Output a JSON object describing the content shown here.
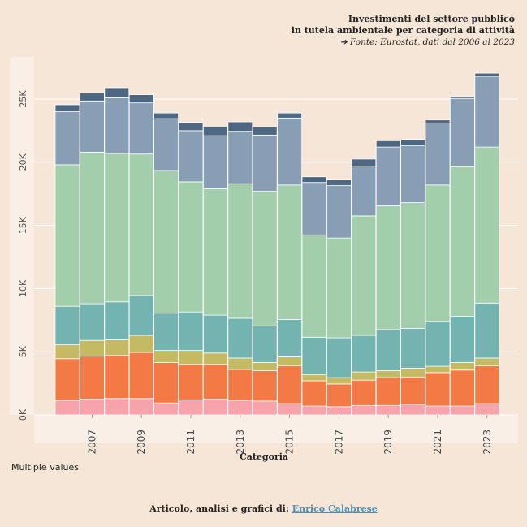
{
  "header": {
    "title_line1": "Investimenti del settore pubblico",
    "title_line2": "in tutela ambientale per categoria di attività",
    "source": "➔ Fonte:  Eurostat, dati dal 2006 al 2023"
  },
  "footer": {
    "note": "Multiple values",
    "credits_prefix": "Articolo, analisi e grafici di:",
    "author": "Enrico Calabrese"
  },
  "chart_data": {
    "type": "bar",
    "stacked": true,
    "xlabel": "Categoria",
    "ylabel": "",
    "ylim": [
      0,
      28000
    ],
    "y_ticks": [
      0,
      5000,
      10000,
      15000,
      20000,
      25000
    ],
    "y_tick_labels": [
      "0K",
      "5K",
      "10K",
      "15K",
      "20K",
      "25K"
    ],
    "x_tick_labels": [
      "2007",
      "2009",
      "2011",
      "2013",
      "2015",
      "2017",
      "2019",
      "2021",
      "2023"
    ],
    "grid": true,
    "categories": [
      2006,
      2007,
      2008,
      2009,
      2010,
      2011,
      2012,
      2013,
      2014,
      2015,
      2016,
      2017,
      2018,
      2019,
      2020,
      2021,
      2022,
      2023
    ],
    "series": [
      {
        "color": "#f7a3ab",
        "values": [
          1150,
          1250,
          1300,
          1300,
          950,
          1200,
          1250,
          1150,
          1100,
          900,
          700,
          650,
          750,
          750,
          850,
          700,
          700,
          900
        ]
      },
      {
        "color": "#f47a45",
        "values": [
          3300,
          3400,
          3400,
          3650,
          3200,
          2800,
          2750,
          2450,
          2400,
          3000,
          2000,
          1800,
          2000,
          2200,
          2150,
          2650,
          2850,
          3000
        ]
      },
      {
        "color": "#c5ba64",
        "values": [
          1100,
          1250,
          1250,
          1350,
          950,
          1100,
          900,
          900,
          650,
          700,
          500,
          500,
          650,
          550,
          700,
          500,
          600,
          600
        ]
      },
      {
        "color": "#73b3b0",
        "values": [
          3050,
          2900,
          3000,
          3150,
          2950,
          3050,
          3000,
          3150,
          2900,
          2950,
          2950,
          3150,
          2900,
          3250,
          3150,
          3550,
          3650,
          4350
        ]
      },
      {
        "color": "#a2ceab",
        "values": [
          11200,
          12000,
          11750,
          11200,
          11300,
          10300,
          10000,
          10650,
          10650,
          10650,
          8100,
          7900,
          9450,
          9800,
          9950,
          10800,
          11850,
          12350
        ]
      },
      {
        "color": "#879eb4",
        "values": [
          4200,
          4050,
          4400,
          4050,
          4100,
          4050,
          4200,
          4150,
          4450,
          5300,
          4150,
          4150,
          3950,
          4650,
          4500,
          4900,
          5400,
          5600
        ]
      },
      {
        "color": "#4e6883",
        "values": [
          550,
          650,
          800,
          650,
          450,
          650,
          750,
          750,
          650,
          400,
          450,
          450,
          550,
          500,
          500,
          250,
          150,
          250
        ]
      }
    ]
  }
}
